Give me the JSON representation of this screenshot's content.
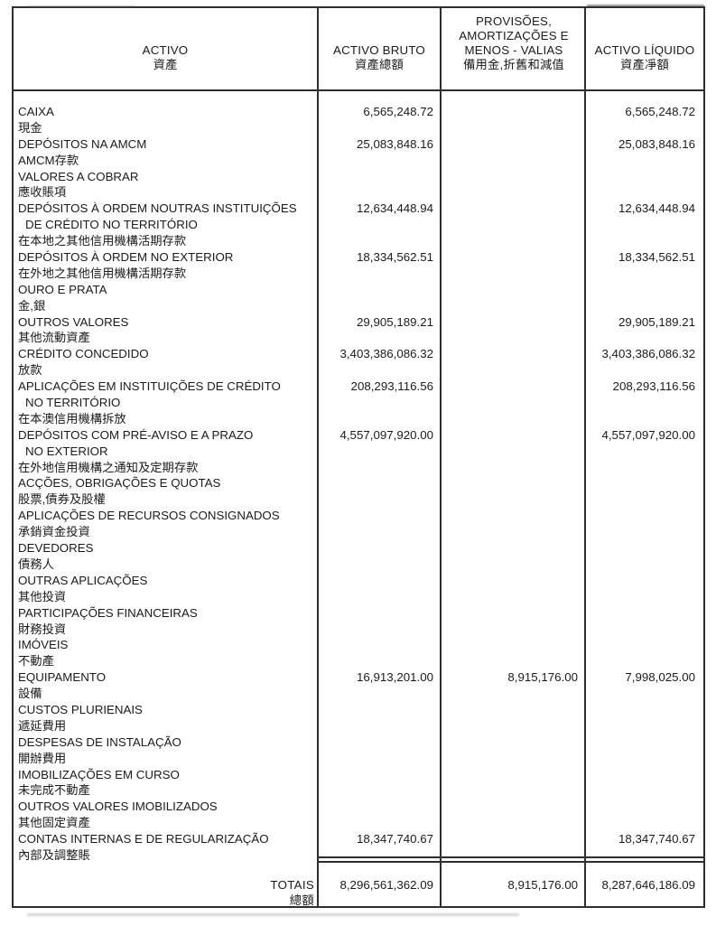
{
  "colors": {
    "ink": "#1b1b1b",
    "border": "#2e2e2e",
    "paper": "#ffffff"
  },
  "table": {
    "header": {
      "activo": {
        "pt": "ACTIVO",
        "zh": "資產"
      },
      "bruto": {
        "pt": "ACTIVO BRUTO",
        "zh": "資產總額"
      },
      "provisoes": {
        "line1": "PROVISÕES,",
        "line2": "AMORTIZAÇÕES E",
        "line3": "MENOS - VALIAS",
        "zh": "備用金,折舊和減值"
      },
      "liquido": {
        "pt": "ACTIVO LÍQUIDO",
        "zh": "資產凈額"
      }
    },
    "rows": [
      {
        "label": "CAIXA",
        "bruto": "6,565,248.72",
        "prov": "",
        "liq": "6,565,248.72"
      },
      {
        "label": "現金",
        "bruto": "",
        "prov": "",
        "liq": ""
      },
      {
        "label": "DEPÓSITOS NA AMCM",
        "bruto": "25,083,848.16",
        "prov": "",
        "liq": "25,083,848.16"
      },
      {
        "label": "AMCM存款",
        "bruto": "",
        "prov": "",
        "liq": ""
      },
      {
        "label": "VALORES A COBRAR",
        "bruto": "",
        "prov": "",
        "liq": ""
      },
      {
        "label": "應收賬項",
        "bruto": "",
        "prov": "",
        "liq": ""
      },
      {
        "label": "DEPÓSITOS À ORDEM NOUTRAS INSTITUIÇÕES",
        "bruto": "12,634,448.94",
        "prov": "",
        "liq": "12,634,448.94"
      },
      {
        "label": "DE CRÉDITO NO TERRITÓRIO",
        "indent": true,
        "bruto": "",
        "prov": "",
        "liq": ""
      },
      {
        "label": "在本地之其他信用機構活期存款",
        "bruto": "",
        "prov": "",
        "liq": ""
      },
      {
        "label": "DEPÓSITOS À ORDEM NO EXTERIOR",
        "bruto": "18,334,562.51",
        "prov": "",
        "liq": "18,334,562.51"
      },
      {
        "label": "在外地之其他信用機構活期存款",
        "bruto": "",
        "prov": "",
        "liq": ""
      },
      {
        "label": "OURO E PRATA",
        "bruto": "",
        "prov": "",
        "liq": ""
      },
      {
        "label": "金,銀",
        "bruto": "",
        "prov": "",
        "liq": ""
      },
      {
        "label": "OUTROS VALORES",
        "bruto": "29,905,189.21",
        "prov": "",
        "liq": "29,905,189.21"
      },
      {
        "label": "其他流動資產",
        "bruto": "",
        "prov": "",
        "liq": ""
      },
      {
        "label": "CRÉDITO CONCEDIDO",
        "bruto": "3,403,386,086.32",
        "prov": "",
        "liq": "3,403,386,086.32"
      },
      {
        "label": "放款",
        "bruto": "",
        "prov": "",
        "liq": ""
      },
      {
        "label": "APLICAÇÕES EM INSTITUIÇÕES DE CRÉDITO",
        "bruto": "208,293,116.56",
        "prov": "",
        "liq": "208,293,116.56"
      },
      {
        "label": "NO TERRITÓRIO",
        "indent": true,
        "bruto": "",
        "prov": "",
        "liq": ""
      },
      {
        "label": "在本澳信用機構拆放",
        "bruto": "",
        "prov": "",
        "liq": ""
      },
      {
        "label": "DEPÓSITOS COM PRÉ-AVISO E A PRAZO",
        "bruto": "4,557,097,920.00",
        "prov": "",
        "liq": "4,557,097,920.00"
      },
      {
        "label": "NO EXTERIOR",
        "indent": true,
        "bruto": "",
        "prov": "",
        "liq": ""
      },
      {
        "label": "在外地信用機構之通知及定期存款",
        "bruto": "",
        "prov": "",
        "liq": ""
      },
      {
        "label": "ACÇÕES, OBRIGAÇÕES E QUOTAS",
        "bruto": "",
        "prov": "",
        "liq": ""
      },
      {
        "label": "股票,債券及股權",
        "bruto": "",
        "prov": "",
        "liq": ""
      },
      {
        "label": "APLICAÇÕES DE RECURSOS CONSIGNADOS",
        "bruto": "",
        "prov": "",
        "liq": ""
      },
      {
        "label": "承銷資金投資",
        "bruto": "",
        "prov": "",
        "liq": ""
      },
      {
        "label": "DEVEDORES",
        "bruto": "",
        "prov": "",
        "liq": ""
      },
      {
        "label": "債務人",
        "bruto": "",
        "prov": "",
        "liq": ""
      },
      {
        "label": "OUTRAS APLICAÇÕES",
        "bruto": "",
        "prov": "",
        "liq": ""
      },
      {
        "label": "其他投資",
        "bruto": "",
        "prov": "",
        "liq": ""
      },
      {
        "label": "PARTICIPAÇÕES FINANCEIRAS",
        "bruto": "",
        "prov": "",
        "liq": ""
      },
      {
        "label": "財務投資",
        "bruto": "",
        "prov": "",
        "liq": ""
      },
      {
        "label": "IMÓVEIS",
        "bruto": "",
        "prov": "",
        "liq": ""
      },
      {
        "label": "不動產",
        "bruto": "",
        "prov": "",
        "liq": ""
      },
      {
        "label": "EQUIPAMENTO",
        "bruto": "16,913,201.00",
        "prov": "8,915,176.00",
        "liq": "7,998,025.00"
      },
      {
        "label": "設備",
        "bruto": "",
        "prov": "",
        "liq": ""
      },
      {
        "label": "CUSTOS PLURIENAIS",
        "bruto": "",
        "prov": "",
        "liq": ""
      },
      {
        "label": "遞延費用",
        "bruto": "",
        "prov": "",
        "liq": ""
      },
      {
        "label": "DESPESAS DE INSTALAÇÃO",
        "bruto": "",
        "prov": "",
        "liq": ""
      },
      {
        "label": "開辦費用",
        "bruto": "",
        "prov": "",
        "liq": ""
      },
      {
        "label": "IMOBILIZAÇÕES EM CURSO",
        "bruto": "",
        "prov": "",
        "liq": ""
      },
      {
        "label": "未完成不動產",
        "bruto": "",
        "prov": "",
        "liq": ""
      },
      {
        "label": "OUTROS VALORES IMOBILIZADOS",
        "bruto": "",
        "prov": "",
        "liq": ""
      },
      {
        "label": "其他固定資產",
        "bruto": "",
        "prov": "",
        "liq": ""
      },
      {
        "label": "CONTAS INTERNAS E DE REGULARIZAÇÃO",
        "bruto": "18,347,740.67",
        "prov": "",
        "liq": "18,347,740.67"
      },
      {
        "label": "內部及調整賬",
        "bruto": "",
        "prov": "",
        "liq": ""
      }
    ],
    "totals": {
      "label_pt": "TOTAIS",
      "label_zh": "總額",
      "bruto": "8,296,561,362.09",
      "provisoes": "8,915,176.00",
      "liquido": "8,287,646,186.09"
    }
  }
}
